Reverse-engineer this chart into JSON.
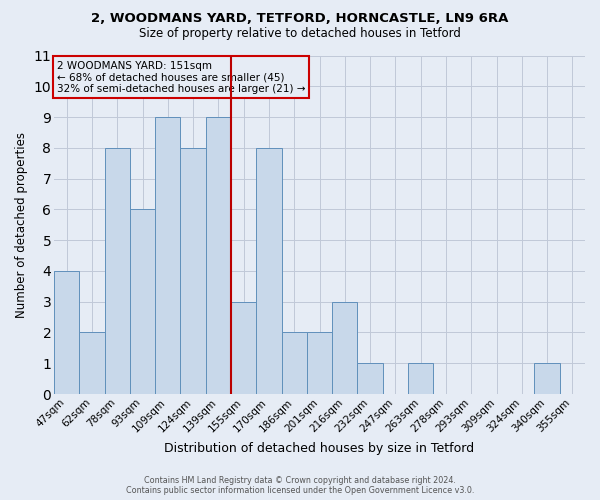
{
  "title_line1": "2, WOODMANS YARD, TETFORD, HORNCASTLE, LN9 6RA",
  "title_line2": "Size of property relative to detached houses in Tetford",
  "xlabel": "Distribution of detached houses by size in Tetford",
  "ylabel": "Number of detached properties",
  "categories": [
    "47sqm",
    "62sqm",
    "78sqm",
    "93sqm",
    "109sqm",
    "124sqm",
    "139sqm",
    "155sqm",
    "170sqm",
    "186sqm",
    "201sqm",
    "216sqm",
    "232sqm",
    "247sqm",
    "263sqm",
    "278sqm",
    "293sqm",
    "309sqm",
    "324sqm",
    "340sqm",
    "355sqm"
  ],
  "values": [
    4,
    2,
    8,
    6,
    9,
    8,
    9,
    3,
    8,
    2,
    2,
    3,
    1,
    0,
    1,
    0,
    0,
    0,
    0,
    1,
    0
  ],
  "bar_color": "#c8d8ea",
  "bar_edge_color": "#6090bb",
  "grid_color": "#c0c8d8",
  "background_color": "#e6ecf5",
  "ref_line_x": 7.5,
  "ref_line_color": "#bb0000",
  "annotation_text_line1": "2 WOODMANS YARD: 151sqm",
  "annotation_text_line2": "← 68% of detached houses are smaller (45)",
  "annotation_text_line3": "32% of semi-detached houses are larger (21) →",
  "annotation_box_color": "#cc0000",
  "ylim": [
    0,
    11
  ],
  "yticks": [
    0,
    1,
    2,
    3,
    4,
    5,
    6,
    7,
    8,
    9,
    10,
    11
  ],
  "footer_line1": "Contains HM Land Registry data © Crown copyright and database right 2024.",
  "footer_line2": "Contains public sector information licensed under the Open Government Licence v3.0."
}
